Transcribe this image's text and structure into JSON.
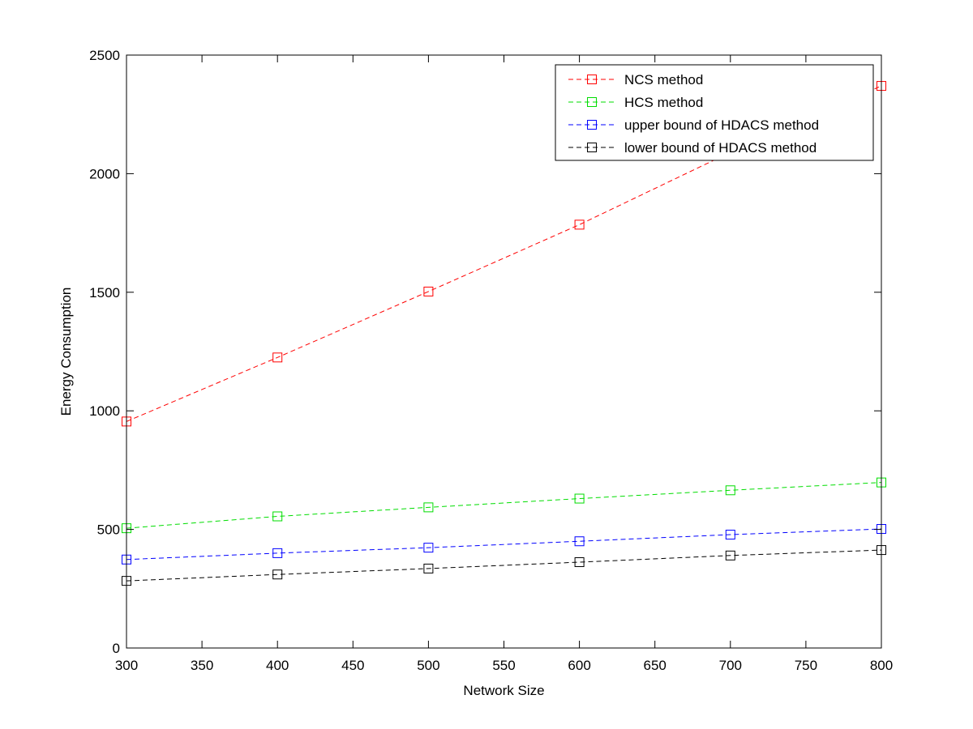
{
  "chart_data": {
    "type": "line",
    "title": "",
    "xlabel": "Network Size",
    "ylabel": "Energy Consumption",
    "xlim": [
      300,
      800
    ],
    "ylim": [
      0,
      2500
    ],
    "xticks": [
      300,
      350,
      400,
      450,
      500,
      550,
      600,
      650,
      700,
      750,
      800
    ],
    "yticks": [
      0,
      500,
      1000,
      1500,
      2000,
      2500
    ],
    "grid": false,
    "legend_position": "top-right",
    "x": [
      300,
      400,
      500,
      600,
      700,
      800
    ],
    "series": [
      {
        "name": "NCS method",
        "color": "#ff0000",
        "values": [
          955,
          1225,
          1503,
          1785,
          2090,
          2370
        ]
      },
      {
        "name": "HCS method",
        "color": "#00dd00",
        "values": [
          505,
          555,
          593,
          630,
          665,
          698
        ]
      },
      {
        "name": "upper bound of HDACS method",
        "color": "#0000ff",
        "values": [
          373,
          400,
          423,
          450,
          478,
          502
        ]
      },
      {
        "name": "lower bound of HDACS method",
        "color": "#000000",
        "values": [
          283,
          310,
          335,
          362,
          390,
          413
        ]
      }
    ]
  }
}
